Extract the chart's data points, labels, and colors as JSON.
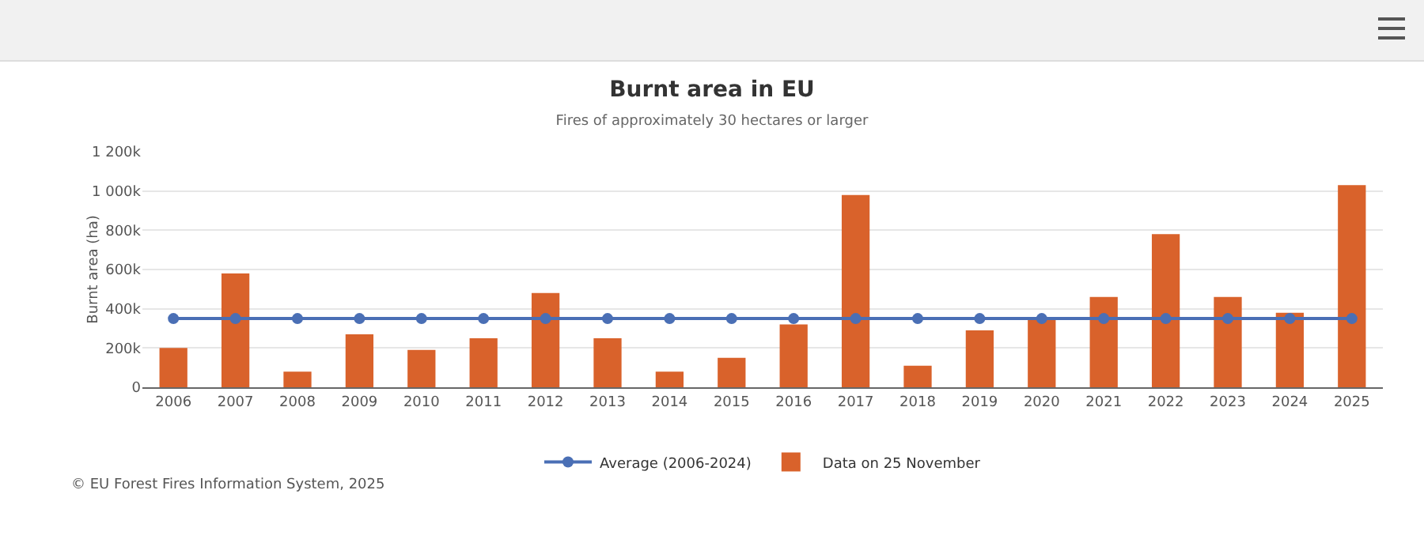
{
  "chart_data": {
    "type": "bar",
    "title": "Burnt area in EU",
    "subtitle": "Fires of approximately 30 hectares or larger",
    "ylabel": "Burnt area (ha)",
    "categories": [
      "2006",
      "2007",
      "2008",
      "2009",
      "2010",
      "2011",
      "2012",
      "2013",
      "2014",
      "2015",
      "2016",
      "2017",
      "2018",
      "2019",
      "2020",
      "2021",
      "2022",
      "2023",
      "2024",
      "2025"
    ],
    "series": [
      {
        "name": "Average (2006-2024)",
        "type": "line",
        "color": "#4a6fb5",
        "values": [
          350,
          350,
          350,
          350,
          350,
          350,
          350,
          350,
          350,
          350,
          350,
          350,
          350,
          350,
          350,
          350,
          350,
          350,
          350,
          350
        ]
      },
      {
        "name": "Data on 25 November",
        "color": "#d9622b",
        "values": [
          200,
          580,
          80,
          270,
          190,
          250,
          480,
          250,
          80,
          150,
          320,
          980,
          110,
          290,
          350,
          460,
          780,
          460,
          380,
          1030
        ]
      }
    ],
    "ylim": [
      0,
      1200
    ],
    "yticks": [
      {
        "value": 0,
        "label": "0"
      },
      {
        "value": 200,
        "label": "200k"
      },
      {
        "value": 400,
        "label": "400k"
      },
      {
        "value": 600,
        "label": "600k"
      },
      {
        "value": 800,
        "label": "800k"
      },
      {
        "value": 1000,
        "label": "1 000k"
      },
      {
        "value": 1200,
        "label": "1 200k"
      }
    ],
    "grid": "y",
    "legend": "bottom",
    "marker": "circle",
    "line_style": "solid",
    "annotations": [
      "© EU Forest Fires Information System, 2025"
    ]
  }
}
